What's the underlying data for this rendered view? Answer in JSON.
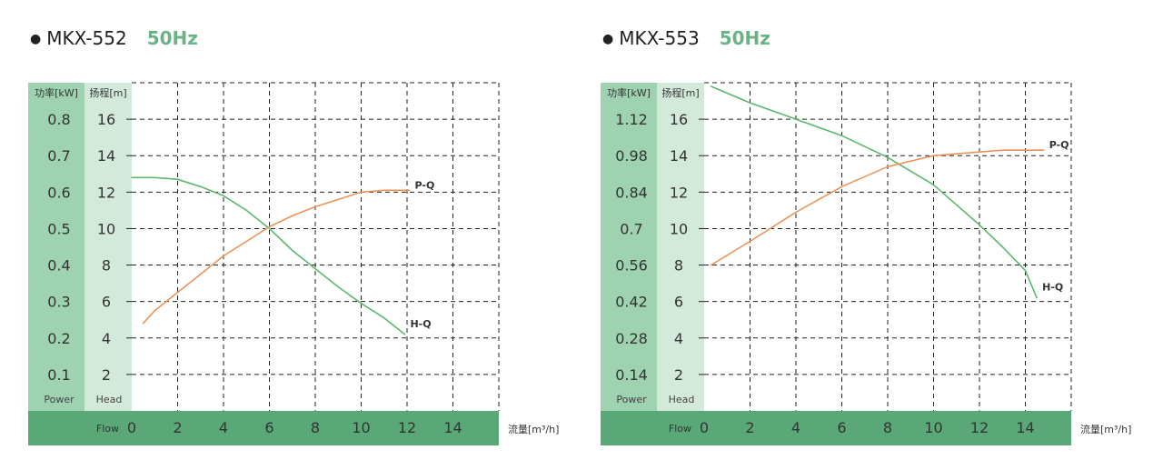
{
  "charts": [
    {
      "model": "MKX-552",
      "frequency": "50Hz",
      "chart_data": {
        "type": "line",
        "power_axis_label": "功率[kW]",
        "head_axis_label": "扬程[m]",
        "power_footer": "Power",
        "head_footer": "Head",
        "flow_label": "Flow",
        "xlabel": "流量[m³/h]",
        "xlim": [
          0,
          16
        ],
        "ylim": [
          0,
          18
        ],
        "x_ticks": [
          "0",
          "2",
          "4",
          "6",
          "8",
          "10",
          "12",
          "14"
        ],
        "head_ticks": [
          "2",
          "4",
          "6",
          "8",
          "10",
          "12",
          "14",
          "16"
        ],
        "power_ticks": [
          "0.1",
          "0.2",
          "0.3",
          "0.4",
          "0.5",
          "0.6",
          "0.7",
          "0.8"
        ],
        "grid": true,
        "series": [
          {
            "name": "H-Q",
            "color": "#5cb86c",
            "x": [
              0,
              1,
              2,
              3,
              4,
              5,
              6,
              7,
              8,
              9,
              10,
              11,
              11.9
            ],
            "y": [
              12.8,
              12.8,
              12.7,
              12.3,
              11.8,
              11.0,
              10.0,
              8.8,
              7.8,
              6.8,
              5.9,
              5.1,
              4.2
            ]
          },
          {
            "name": "P-Q",
            "color": "#e8955a",
            "x": [
              0.5,
              1,
              2,
              3,
              4,
              5,
              6,
              7,
              8,
              9,
              10,
              11,
              12.1
            ],
            "y": [
              4.8,
              5.5,
              6.5,
              7.5,
              8.5,
              9.3,
              10.1,
              10.7,
              11.2,
              11.6,
              12.0,
              12.1,
              12.1
            ]
          }
        ]
      }
    },
    {
      "model": "MKX-553",
      "frequency": "50Hz",
      "chart_data": {
        "type": "line",
        "power_axis_label": "功率[kW]",
        "head_axis_label": "扬程[m]",
        "power_footer": "Power",
        "head_footer": "Head",
        "flow_label": "Flow",
        "xlabel": "流量[m³/h]",
        "xlim": [
          0,
          16
        ],
        "ylim": [
          0,
          18
        ],
        "x_ticks": [
          "0",
          "2",
          "4",
          "6",
          "8",
          "10",
          "12",
          "14"
        ],
        "head_ticks": [
          "2",
          "4",
          "6",
          "8",
          "10",
          "12",
          "14",
          "16"
        ],
        "power_ticks": [
          "0.14",
          "0.28",
          "0.42",
          "0.56",
          "0.7",
          "0.84",
          "0.98",
          "1.12"
        ],
        "grid": true,
        "series": [
          {
            "name": "H-Q",
            "color": "#5cb86c",
            "x": [
              0.3,
              2,
              4,
              6,
              8,
              10,
              12,
              13,
              14,
              14.5
            ],
            "y": [
              17.8,
              16.9,
              16.0,
              15.1,
              13.9,
              12.4,
              10.2,
              9.0,
              7.7,
              6.2
            ]
          },
          {
            "name": "P-Q",
            "color": "#e8955a",
            "x": [
              0.3,
              2,
              4,
              6,
              8,
              10,
              12,
              13,
              14,
              14.8
            ],
            "y": [
              8.0,
              9.3,
              10.9,
              12.3,
              13.4,
              14.0,
              14.2,
              14.3,
              14.3,
              14.3
            ]
          }
        ]
      }
    }
  ]
}
